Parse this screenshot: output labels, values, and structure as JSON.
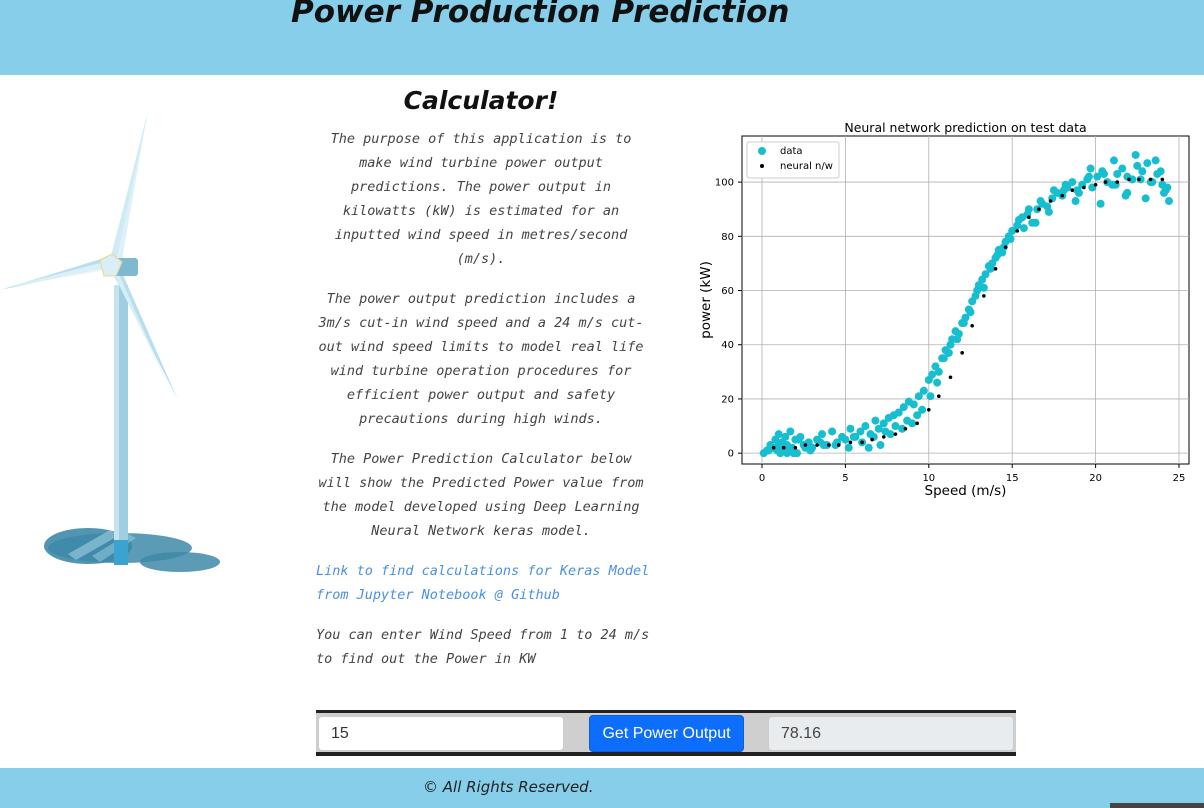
{
  "header": {
    "title": "Power Production Prediction"
  },
  "main": {
    "subtitle": "Calculator!",
    "paragraphs": [
      "The purpose of this application is to make wind turbine power output predictions. The power output in kilowatts (kW) is estimated for an inputted wind speed in metres/second (m/s).",
      "The power output prediction includes a 3m/s cut-in wind speed and a 24 m/s cut-out wind speed limits to model real life wind turbine operation procedures for efficient power output and safety precautions during high winds.",
      "The Power Prediction Calculator below will show the Predicted Power value from the model developed using Deep Learning Neural Network keras model."
    ],
    "link_text": "Link to find calculations for Keras Model from Jupyter Notebook @ Github",
    "note": "You can enter Wind Speed from 1 to 24 m/s to find out the Power in KW"
  },
  "calculator": {
    "speed_value": "15",
    "button_label": "Get Power Output",
    "output_value": "78.16"
  },
  "footer": {
    "text": "© All Rights Reserved."
  },
  "icons": {
    "turbine": "wind-turbine-illustration"
  },
  "colors": {
    "header_bg": "#87ceeb",
    "data": "#17becf",
    "prediction": "#000000",
    "button": "#0d6efd",
    "link": "#4a90e2"
  },
  "chart_data": {
    "type": "scatter",
    "title": "Neural network prediction on test data",
    "xlabel": "Speed (m/s)",
    "ylabel": "power (kW)",
    "xlim": [
      -1.2,
      25.6
    ],
    "ylim": [
      -4,
      117
    ],
    "xticks": [
      0,
      5,
      10,
      15,
      20,
      25
    ],
    "yticks": [
      0,
      20,
      40,
      60,
      80,
      100
    ],
    "grid": true,
    "legend": "top-left",
    "series": [
      {
        "name": "data",
        "color": "#17becf",
        "marker": "circle",
        "x": [
          0.1,
          0.3,
          0.5,
          0.6,
          0.8,
          0.9,
          1.0,
          1.1,
          1.2,
          1.3,
          1.4,
          1.5,
          1.6,
          1.7,
          1.8,
          2.0,
          2.1,
          2.3,
          2.5,
          2.8,
          3.0,
          3.3,
          3.6,
          3.9,
          4.2,
          4.5,
          4.8,
          5.0,
          5.3,
          5.6,
          5.9,
          6.2,
          6.5,
          6.8,
          7.0,
          7.3,
          7.6,
          7.9,
          8.2,
          8.5,
          8.8,
          9.1,
          9.4,
          9.7,
          10.0,
          10.2,
          10.4,
          10.6,
          10.8,
          11.0,
          11.2,
          11.4,
          11.6,
          11.8,
          12.0,
          12.2,
          12.4,
          12.6,
          12.8,
          13.0,
          13.2,
          13.4,
          13.6,
          13.8,
          14.0,
          14.2,
          14.4,
          14.6,
          14.8,
          15.0,
          15.3,
          15.6,
          15.9,
          16.2,
          16.5,
          16.8,
          17.1,
          17.4,
          17.7,
          18.0,
          18.3,
          18.6,
          18.9,
          19.2,
          19.5,
          19.8,
          20.1,
          20.4,
          20.7,
          21.0,
          21.3,
          21.6,
          21.9,
          22.2,
          22.5,
          22.8,
          23.1,
          23.4,
          23.7,
          24.0,
          24.3,
          0.4,
          1.0,
          1.9,
          2.6,
          3.5,
          4.4,
          5.5,
          6.4,
          7.4,
          8.0,
          8.7,
          9.3,
          10.5,
          11.3,
          12.1,
          12.9,
          13.7,
          14.5,
          15.4,
          16.0,
          16.7,
          17.5,
          18.2,
          19.0,
          19.7,
          20.5,
          21.1,
          21.8,
          22.4,
          23.0,
          23.6,
          24.2,
          24.4,
          0.7,
          1.5,
          2.2,
          2.9,
          3.7,
          5.2,
          6.0,
          6.7,
          7.1,
          7.7,
          8.4,
          9.0,
          9.6,
          10.1,
          10.9,
          11.7,
          12.5,
          13.3,
          14.1,
          14.9,
          15.7,
          16.4,
          17.2,
          18.1,
          18.8,
          19.6,
          20.3,
          21.2,
          21.9,
          22.7,
          23.3,
          23.9,
          24.1
        ],
        "y": [
          0,
          1,
          3,
          2,
          5,
          1,
          7,
          0,
          4,
          2,
          6,
          3,
          1,
          8,
          2,
          5,
          0,
          6,
          3,
          4,
          2,
          5,
          7,
          3,
          8,
          4,
          6,
          5,
          9,
          6,
          8,
          10,
          7,
          12,
          9,
          11,
          13,
          14,
          15,
          17,
          19,
          18,
          21,
          23,
          27,
          29,
          32,
          30,
          35,
          38,
          37,
          42,
          45,
          44,
          48,
          50,
          53,
          56,
          58,
          62,
          64,
          66,
          69,
          70,
          72,
          75,
          74,
          78,
          80,
          82,
          84,
          87,
          88,
          85,
          90,
          92,
          91,
          94,
          96,
          95,
          98,
          100,
          97,
          99,
          101,
          98,
          102,
          104,
          100,
          99,
          103,
          105,
          102,
          101,
          106,
          104,
          107,
          100,
          103,
          99,
          98,
          1,
          3,
          0,
          2,
          4,
          3,
          6,
          2,
          8,
          10,
          12,
          14,
          26,
          40,
          48,
          60,
          68,
          76,
          86,
          90,
          93,
          97,
          99,
          96,
          105,
          103,
          108,
          95,
          110,
          94,
          108,
          97,
          93,
          2,
          0,
          5,
          1,
          3,
          2,
          4,
          6,
          3,
          7,
          9,
          11,
          16,
          21,
          35,
          42,
          52,
          61,
          73,
          79,
          83,
          85,
          89,
          97,
          93,
          102,
          92,
          99,
          96,
          101,
          100,
          104,
          96
        ]
      },
      {
        "name": "neural n/w",
        "color": "#000000",
        "marker": "dot",
        "x": [
          0.7,
          1.3,
          2.0,
          2.6,
          3.3,
          4.0,
          4.6,
          5.3,
          6.0,
          6.6,
          7.3,
          8.0,
          8.6,
          9.3,
          10.0,
          10.6,
          11.3,
          12.0,
          12.6,
          13.3,
          14.0,
          14.6,
          15.3,
          16.0,
          16.6,
          17.3,
          18.0,
          18.6,
          19.3,
          20.0,
          20.6,
          21.3,
          22.0,
          22.6,
          23.3,
          24.0
        ],
        "y": [
          2,
          2,
          2,
          3,
          3,
          3,
          3,
          4,
          4,
          5,
          6,
          7,
          9,
          11,
          16,
          21,
          28,
          37,
          47,
          58,
          68,
          76,
          82,
          87,
          90,
          93,
          95,
          97,
          98,
          99,
          100,
          100,
          101,
          101,
          101,
          101
        ]
      }
    ]
  }
}
